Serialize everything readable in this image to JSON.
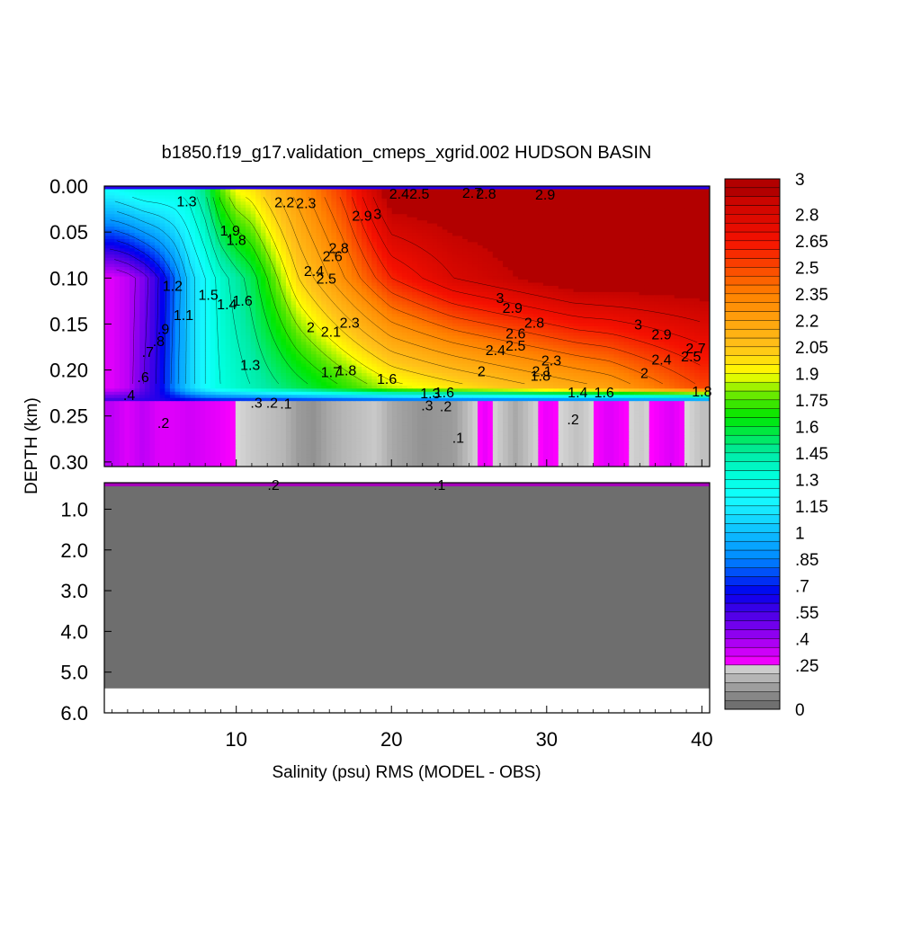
{
  "chart_data": {
    "type": "heatmap",
    "title": "b1850.f19_g17.validation_cmeps_xgrid.002 HUDSON BASIN",
    "xlabel": "Salinity (psu) RMS (MODEL - OBS)",
    "ylabel": "DEPTH (km)",
    "xlim": [
      1.5,
      40.5
    ],
    "x_ticks": [
      10,
      20,
      30,
      40
    ],
    "x_tick_labels": [
      "10",
      "20",
      "30",
      "40"
    ],
    "upper_panel": {
      "ylim": [
        0.0,
        0.305
      ],
      "y_ticks": [
        0.0,
        0.05,
        0.1,
        0.15,
        0.2,
        0.25,
        0.3
      ],
      "y_tick_labels": [
        "0.00",
        "0.05",
        "0.10",
        "0.15",
        "0.20",
        "0.25",
        "0.30"
      ]
    },
    "lower_panel": {
      "ylim": [
        0.35,
        6.0
      ],
      "y_ticks": [
        1.0,
        2.0,
        3.0,
        4.0,
        5.0,
        6.0
      ],
      "y_tick_labels": [
        "1.0",
        "2.0",
        "3.0",
        "4.0",
        "5.0",
        "6.0"
      ],
      "bottom_depth_km": 5.4
    },
    "colorbar": {
      "tick_labels": [
        "3",
        "2.8",
        "2.65",
        "2.5",
        "2.35",
        "2.2",
        "2.05",
        "1.9",
        "1.75",
        "1.6",
        "1.45",
        "1.3",
        "1.15",
        "1",
        ".85",
        ".7",
        ".55",
        ".4",
        ".25",
        "0"
      ],
      "tick_values": [
        3,
        2.8,
        2.65,
        2.5,
        2.35,
        2.2,
        2.05,
        1.9,
        1.75,
        1.6,
        1.45,
        1.3,
        1.15,
        1,
        0.85,
        0.7,
        0.55,
        0.4,
        0.25,
        0
      ],
      "range": [
        0,
        3
      ],
      "gray_band_max": 0.25
    },
    "upper_sections": [
      {
        "x": 2,
        "surface": 1.2,
        "mid": 0.3,
        "deep": 0.3,
        "below": 0.35
      },
      {
        "x": 3,
        "surface": 1.25,
        "mid": 0.35,
        "deep": 0.35,
        "below": 0.3
      },
      {
        "x": 4,
        "surface": 1.3,
        "mid": 0.45,
        "deep": 0.5,
        "below": 0.35
      },
      {
        "x": 5,
        "surface": 1.3,
        "mid": 0.6,
        "deep": 0.62,
        "below": 0.3
      },
      {
        "x": 6,
        "surface": 1.3,
        "mid": 0.8,
        "deep": 0.85,
        "below": 0.3
      },
      {
        "x": 7,
        "surface": 1.35,
        "mid": 1.05,
        "deep": 1.05,
        "below": 0.32
      },
      {
        "x": 8,
        "surface": 1.5,
        "mid": 1.2,
        "deep": 1.2,
        "below": 0.3
      },
      {
        "x": 9,
        "surface": 1.75,
        "mid": 1.35,
        "deep": 1.3,
        "below": 0.28
      },
      {
        "x": 10,
        "surface": 1.9,
        "mid": 1.45,
        "deep": 1.35,
        "below": 0.25
      },
      {
        "x": 11,
        "surface": 1.95,
        "mid": 1.55,
        "deep": 1.4,
        "below": 0.22
      },
      {
        "x": 12,
        "surface": 2.05,
        "mid": 1.7,
        "deep": 1.45,
        "below": 0.2
      },
      {
        "x": 13,
        "surface": 2.15,
        "mid": 1.85,
        "deep": 1.5,
        "below": 0.18
      },
      {
        "x": 14,
        "surface": 2.25,
        "mid": 2.0,
        "deep": 1.55,
        "below": 0.12
      },
      {
        "x": 15,
        "surface": 2.35,
        "mid": 2.1,
        "deep": 1.6,
        "below": 0.1
      },
      {
        "x": 16,
        "surface": 2.45,
        "mid": 2.2,
        "deep": 1.65,
        "below": 0.15
      },
      {
        "x": 17,
        "surface": 2.55,
        "mid": 2.3,
        "deep": 1.7,
        "below": 0.18
      },
      {
        "x": 18,
        "surface": 2.7,
        "mid": 2.4,
        "deep": 1.75,
        "below": 0.2
      },
      {
        "x": 19,
        "surface": 2.85,
        "mid": 2.5,
        "deep": 1.8,
        "below": 0.22
      },
      {
        "x": 20,
        "surface": 3.0,
        "mid": 2.6,
        "deep": 1.85,
        "below": 0.15
      },
      {
        "x": 22,
        "surface": 3.0,
        "mid": 2.7,
        "deep": 1.9,
        "below": 0.1
      },
      {
        "x": 24,
        "surface": 3.0,
        "mid": 2.8,
        "deep": 1.95,
        "below": 0.12
      },
      {
        "x": 26,
        "surface": 3.0,
        "mid": 2.85,
        "deep": 2.0,
        "below": 0.28
      },
      {
        "x": 28,
        "surface": 3.0,
        "mid": 2.9,
        "deep": 2.05,
        "below": 0.15
      },
      {
        "x": 30,
        "surface": 3.0,
        "mid": 2.95,
        "deep": 2.1,
        "below": 0.28
      },
      {
        "x": 32,
        "surface": 3.0,
        "mid": 3.0,
        "deep": 2.15,
        "below": 0.2
      },
      {
        "x": 34,
        "surface": 3.0,
        "mid": 3.0,
        "deep": 2.2,
        "below": 0.3
      },
      {
        "x": 36,
        "surface": 3.0,
        "mid": 3.0,
        "deep": 2.3,
        "below": 0.22
      },
      {
        "x": 38,
        "surface": 3.0,
        "mid": 3.0,
        "deep": 2.4,
        "below": 0.3
      },
      {
        "x": 40,
        "surface": 3.0,
        "mid": 3.0,
        "deep": 2.5,
        "below": 0.2
      }
    ],
    "contour_labels": [
      {
        "text": "1.3",
        "x": 6.8,
        "y": 0.016
      },
      {
        "text": "2.2",
        "x": 13.1,
        "y": 0.017
      },
      {
        "text": "2.3",
        "x": 14.5,
        "y": 0.018
      },
      {
        "text": "2.4",
        "x": 20.5,
        "y": 0.008
      },
      {
        "text": "2.5",
        "x": 21.8,
        "y": 0.008
      },
      {
        "text": "2.7",
        "x": 25.2,
        "y": 0.007
      },
      {
        "text": "2.8",
        "x": 26.1,
        "y": 0.008
      },
      {
        "text": "2.9",
        "x": 29.9,
        "y": 0.009
      },
      {
        "text": "1.9",
        "x": 9.6,
        "y": 0.048
      },
      {
        "text": "1.8",
        "x": 10.0,
        "y": 0.058
      },
      {
        "text": "2.9",
        "x": 18.1,
        "y": 0.032
      },
      {
        "text": "3",
        "x": 19.1,
        "y": 0.03
      },
      {
        "text": "2.8",
        "x": 16.6,
        "y": 0.067
      },
      {
        "text": "2.6",
        "x": 16.2,
        "y": 0.076
      },
      {
        "text": "2.4",
        "x": 15.0,
        "y": 0.092
      },
      {
        "text": "2.5",
        "x": 15.8,
        "y": 0.1
      },
      {
        "text": "1.2",
        "x": 5.9,
        "y": 0.108
      },
      {
        "text": "1.1",
        "x": 6.6,
        "y": 0.14
      },
      {
        "text": "1.5",
        "x": 8.2,
        "y": 0.118
      },
      {
        "text": "1.6",
        "x": 10.4,
        "y": 0.124
      },
      {
        "text": "1.4",
        "x": 9.4,
        "y": 0.128
      },
      {
        "text": "3",
        "x": 27.0,
        "y": 0.121
      },
      {
        "text": "2.9",
        "x": 27.8,
        "y": 0.132
      },
      {
        "text": "2.8",
        "x": 29.2,
        "y": 0.148
      },
      {
        "text": ".9",
        "x": 5.3,
        "y": 0.155
      },
      {
        "text": ".8",
        "x": 5.0,
        "y": 0.168
      },
      {
        "text": "2",
        "x": 14.8,
        "y": 0.153
      },
      {
        "text": "2.1",
        "x": 16.1,
        "y": 0.158
      },
      {
        "text": "2.3",
        "x": 17.3,
        "y": 0.148
      },
      {
        "text": "2.6",
        "x": 28.0,
        "y": 0.16
      },
      {
        "text": "2.4",
        "x": 26.7,
        "y": 0.178
      },
      {
        "text": "2.5",
        "x": 28.0,
        "y": 0.173
      },
      {
        "text": "3",
        "x": 35.9,
        "y": 0.15
      },
      {
        "text": "2.9",
        "x": 37.4,
        "y": 0.161
      },
      {
        "text": "2.7",
        "x": 39.6,
        "y": 0.176
      },
      {
        "text": "2.4",
        "x": 37.4,
        "y": 0.188
      },
      {
        "text": "2.5",
        "x": 39.3,
        "y": 0.185
      },
      {
        "text": ".7",
        "x": 4.3,
        "y": 0.18
      },
      {
        "text": "1.3",
        "x": 10.9,
        "y": 0.194
      },
      {
        "text": ".6",
        "x": 4.0,
        "y": 0.207
      },
      {
        "text": "1.7",
        "x": 16.1,
        "y": 0.202
      },
      {
        "text": "1.8",
        "x": 17.1,
        "y": 0.2
      },
      {
        "text": "1.6",
        "x": 19.7,
        "y": 0.209
      },
      {
        "text": "2",
        "x": 25.8,
        "y": 0.201
      },
      {
        "text": "2.1",
        "x": 29.7,
        "y": 0.201
      },
      {
        "text": "2.3",
        "x": 30.3,
        "y": 0.189
      },
      {
        "text": "1.8",
        "x": 29.6,
        "y": 0.206
      },
      {
        "text": "2",
        "x": 36.3,
        "y": 0.203
      },
      {
        "text": ".4",
        "x": 3.1,
        "y": 0.227
      },
      {
        "text": "1.3",
        "x": 22.5,
        "y": 0.225
      },
      {
        "text": "1.6",
        "x": 23.4,
        "y": 0.224
      },
      {
        "text": "1.4",
        "x": 32.0,
        "y": 0.224
      },
      {
        "text": "1.6",
        "x": 33.7,
        "y": 0.224
      },
      {
        "text": "1.8",
        "x": 40.0,
        "y": 0.223
      },
      {
        "text": ".3",
        "x": 11.3,
        "y": 0.235
      },
      {
        "text": ".2",
        "x": 12.3,
        "y": 0.235
      },
      {
        "text": ".1",
        "x": 13.2,
        "y": 0.236
      },
      {
        "text": ".3",
        "x": 22.3,
        "y": 0.238
      },
      {
        "text": ".2",
        "x": 23.5,
        "y": 0.239
      },
      {
        "text": ".2",
        "x": 5.3,
        "y": 0.257
      },
      {
        "text": ".2",
        "x": 31.7,
        "y": 0.253
      },
      {
        "text": ".1",
        "x": 24.3,
        "y": 0.273
      }
    ],
    "lower_contour_labels": [
      {
        "text": ".1",
        "x": 23.1,
        "y": 0.42
      },
      {
        "text": ".2",
        "x": 12.4,
        "y": 0.42
      }
    ]
  }
}
